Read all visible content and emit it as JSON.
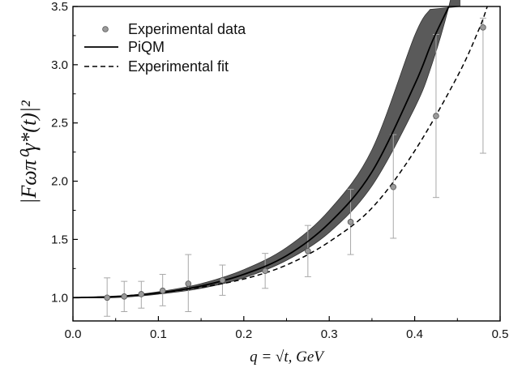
{
  "chart_data": {
    "type": "scatter",
    "title": "",
    "xlabel": "q = √t,  GeV",
    "ylabel": "|Fωπ⁰γ*(t)|²",
    "xlim": [
      0.0,
      0.5
    ],
    "ylim": [
      0.8,
      3.5
    ],
    "x_ticks": [
      0.0,
      0.1,
      0.2,
      0.3,
      0.4,
      0.5
    ],
    "x_tick_labels": [
      "0.0",
      "0.1",
      "0.2",
      "0.3",
      "0.4",
      "0.5"
    ],
    "y_ticks": [
      1.0,
      1.5,
      2.0,
      2.5,
      3.0,
      3.5
    ],
    "y_tick_labels": [
      "1.0",
      "1.5",
      "2.0",
      "2.5",
      "3.0",
      "3.5"
    ],
    "grid": false,
    "legend_position": "top-left",
    "legend": [
      "Experimental data",
      "PiQM",
      "Experimental fit"
    ],
    "series": [
      {
        "name": "Experimental data",
        "kind": "points-with-error-bars",
        "x": [
          0.04,
          0.06,
          0.08,
          0.105,
          0.135,
          0.175,
          0.225,
          0.275,
          0.325,
          0.375,
          0.425,
          0.48
        ],
        "y": [
          1.0,
          1.01,
          1.03,
          1.06,
          1.12,
          1.15,
          1.23,
          1.4,
          1.65,
          1.95,
          2.56,
          3.32
        ],
        "y_low": [
          0.84,
          0.88,
          0.91,
          0.93,
          0.88,
          1.02,
          1.08,
          1.18,
          1.37,
          1.51,
          1.86,
          2.24
        ],
        "y_high": [
          1.17,
          1.14,
          1.14,
          1.2,
          1.37,
          1.28,
          1.38,
          1.62,
          1.93,
          2.4,
          3.26,
          3.4
        ],
        "color": "#9a9a9a"
      },
      {
        "name": "PiQM",
        "kind": "line",
        "style": "solid",
        "x": [
          0.0,
          0.05,
          0.1,
          0.15,
          0.2,
          0.25,
          0.3,
          0.35,
          0.4,
          0.42,
          0.44
        ],
        "y": [
          1.0,
          1.01,
          1.04,
          1.1,
          1.2,
          1.36,
          1.64,
          2.08,
          2.83,
          3.19,
          3.5
        ],
        "band_low": [
          1.0,
          1.0,
          1.03,
          1.08,
          1.17,
          1.32,
          1.56,
          1.96,
          2.63,
          3.0,
          3.5
        ],
        "band_high": [
          1.0,
          1.01,
          1.05,
          1.12,
          1.24,
          1.43,
          1.75,
          2.27,
          3.25,
          3.5,
          3.5
        ],
        "band_high_x_end": 0.418,
        "band_low_x_end": 0.453,
        "color": "#000000",
        "band_color": "#5a5a5a"
      },
      {
        "name": "Experimental fit",
        "kind": "line",
        "style": "dashed",
        "x": [
          0.0,
          0.05,
          0.1,
          0.15,
          0.2,
          0.25,
          0.3,
          0.35,
          0.4,
          0.45,
          0.475,
          0.485
        ],
        "y": [
          1.0,
          1.01,
          1.04,
          1.09,
          1.16,
          1.28,
          1.48,
          1.77,
          2.26,
          2.9,
          3.3,
          3.5
        ],
        "color": "#000000"
      }
    ]
  }
}
